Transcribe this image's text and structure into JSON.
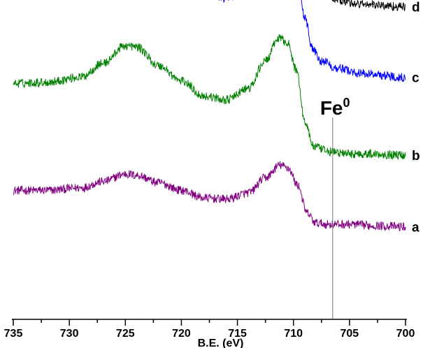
{
  "chart_data": {
    "type": "line",
    "title": "",
    "xlabel": "B.E. (eV)",
    "ylabel": "",
    "xlim": [
      735,
      700
    ],
    "x_reversed": true,
    "x_ticks": [
      735,
      730,
      725,
      720,
      715,
      710,
      705,
      700
    ],
    "y_axis_visible": false,
    "grid": false,
    "legend": "none",
    "annotation": {
      "base": "Fe",
      "sup": "0",
      "x": 706.5
    },
    "series": [
      {
        "name": "a",
        "color": "#800080",
        "offset": 0,
        "noise": 0.035,
        "points": [
          [
            735,
            0.32
          ],
          [
            732,
            0.32
          ],
          [
            729,
            0.34
          ],
          [
            727,
            0.39
          ],
          [
            725,
            0.45
          ],
          [
            724,
            0.44
          ],
          [
            722,
            0.38
          ],
          [
            720,
            0.32
          ],
          [
            718,
            0.26
          ],
          [
            716,
            0.25
          ],
          [
            714,
            0.3
          ],
          [
            712.5,
            0.42
          ],
          [
            711.2,
            0.52
          ],
          [
            710.5,
            0.5
          ],
          [
            709.6,
            0.36
          ],
          [
            708.8,
            0.14
          ],
          [
            708,
            0.06
          ],
          [
            707,
            0.05
          ],
          [
            705,
            0.05
          ],
          [
            703,
            0.04
          ],
          [
            700,
            0.03
          ]
        ]
      },
      {
        "name": "b",
        "color": "#008000",
        "offset": 0.55,
        "noise": 0.035,
        "points": [
          [
            735,
            0.62
          ],
          [
            732,
            0.63
          ],
          [
            729,
            0.67
          ],
          [
            727,
            0.78
          ],
          [
            725,
            0.92
          ],
          [
            724,
            0.91
          ],
          [
            722,
            0.76
          ],
          [
            720,
            0.64
          ],
          [
            718,
            0.52
          ],
          [
            716,
            0.49
          ],
          [
            714,
            0.58
          ],
          [
            712.5,
            0.8
          ],
          [
            711.3,
            0.98
          ],
          [
            710.6,
            0.95
          ],
          [
            709.7,
            0.72
          ],
          [
            709,
            0.32
          ],
          [
            708.2,
            0.12
          ],
          [
            707,
            0.08
          ],
          [
            705,
            0.06
          ],
          [
            703,
            0.06
          ],
          [
            700,
            0.05
          ]
        ]
      },
      {
        "name": "c",
        "color": "#0000ff",
        "offset": 1.15,
        "noise": 0.035,
        "points": [
          [
            735,
            0.9
          ],
          [
            732,
            0.92
          ],
          [
            729,
            0.98
          ],
          [
            727,
            1.1
          ],
          [
            725,
            1.23
          ],
          [
            724,
            1.22
          ],
          [
            722,
            1.07
          ],
          [
            720,
            0.9
          ],
          [
            718,
            0.75
          ],
          [
            716,
            0.7
          ],
          [
            714,
            0.8
          ],
          [
            712.5,
            1.02
          ],
          [
            711.2,
            1.16
          ],
          [
            710.5,
            1.12
          ],
          [
            709.7,
            0.92
          ],
          [
            709,
            0.55
          ],
          [
            708.3,
            0.3
          ],
          [
            707.5,
            0.2
          ],
          [
            706,
            0.14
          ],
          [
            704,
            0.1
          ],
          [
            700,
            0.07
          ]
        ]
      },
      {
        "name": "d",
        "color": "#000000",
        "offset": 1.65,
        "noise": 0.035,
        "points": [
          [
            735,
            1.06
          ],
          [
            732,
            1.08
          ],
          [
            729,
            1.18
          ],
          [
            727,
            1.35
          ],
          [
            725,
            1.58
          ],
          [
            724,
            1.57
          ],
          [
            722,
            1.36
          ],
          [
            720,
            1.12
          ],
          [
            718,
            0.92
          ],
          [
            716,
            0.86
          ],
          [
            714,
            1.0
          ],
          [
            712.5,
            1.38
          ],
          [
            711.2,
            1.67
          ],
          [
            710.5,
            1.62
          ],
          [
            709.7,
            1.32
          ],
          [
            709,
            0.88
          ],
          [
            708.2,
            0.45
          ],
          [
            707.5,
            0.27
          ],
          [
            706,
            0.18
          ],
          [
            704,
            0.15
          ],
          [
            700,
            0.13
          ]
        ]
      }
    ]
  }
}
